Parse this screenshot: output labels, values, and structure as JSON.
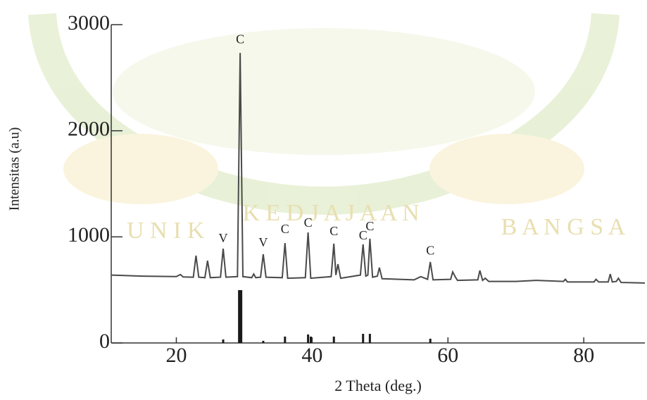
{
  "chart_data": {
    "type": "line",
    "xlabel": "2 Theta (deg.)",
    "ylabel": "Intensitas (a.u)",
    "xlim": [
      10,
      89
    ],
    "ylim": [
      0,
      3000
    ],
    "xticks": [
      20,
      40,
      60,
      80
    ],
    "yticks": [
      0,
      1000,
      2000,
      3000
    ],
    "color": "#4a4a4a",
    "x": [
      10.5,
      15,
      20,
      20.6,
      21,
      22.5,
      22.9,
      23.3,
      24.2,
      24.6,
      25,
      26.5,
      26.9,
      27.3,
      29.0,
      29.4,
      29.8,
      31.1,
      31.4,
      31.7,
      32.4,
      32.8,
      33.2,
      35.6,
      36,
      36.4,
      39.0,
      39.4,
      39.8,
      42.8,
      43.2,
      43.5,
      43.8,
      44.2,
      47.1,
      47.5,
      47.9,
      48.2,
      48.5,
      48.9,
      49.6,
      49.9,
      50.3,
      55,
      56,
      57,
      57.4,
      57.8,
      60.4,
      60.7,
      61.1,
      61.4,
      64.4,
      64.7,
      65.1,
      65.5,
      66,
      70,
      73,
      77,
      77.3,
      77.6,
      81.5,
      81.8,
      82.2,
      83.6,
      83.9,
      84.2,
      84.8,
      85.1,
      85.5,
      89
    ],
    "values": [
      640,
      630,
      625,
      645,
      622,
      620,
      823,
      620,
      615,
      776,
      615,
      620,
      889,
      620,
      625,
      2734,
      625,
      615,
      650,
      615,
      620,
      836,
      620,
      615,
      942,
      610,
      615,
      1042,
      610,
      625,
      936,
      640,
      743,
      610,
      640,
      929,
      630,
      640,
      982,
      620,
      630,
      710,
      605,
      595,
      625,
      600,
      763,
      595,
      600,
      670,
      620,
      590,
      595,
      683,
      590,
      610,
      580,
      580,
      590,
      580,
      600,
      575,
      575,
      600,
      575,
      575,
      650,
      575,
      580,
      610,
      570,
      565
    ],
    "reference": {
      "color": "#1a1a1a",
      "x": [
        26.9,
        29.4,
        32.8,
        36,
        39.4,
        39.8,
        43.2,
        47.5,
        48.5,
        57.4
      ],
      "values": [
        33,
        498,
        20,
        60,
        80,
        60,
        60,
        86,
        86,
        40
      ]
    },
    "annotations": [
      {
        "text": "V",
        "x": 26.9,
        "y": 975
      },
      {
        "text": "C",
        "x": 29.4,
        "y": 2850
      },
      {
        "text": "V",
        "x": 32.8,
        "y": 936
      },
      {
        "text": "C",
        "x": 36,
        "y": 1062
      },
      {
        "text": "C",
        "x": 39.4,
        "y": 1121
      },
      {
        "text": "C",
        "x": 43.2,
        "y": 1042
      },
      {
        "text": "C",
        "x": 47.5,
        "y": 1002
      },
      {
        "text": "C",
        "x": 48.5,
        "y": 1088
      },
      {
        "text": "C",
        "x": 57.4,
        "y": 862
      }
    ]
  },
  "watermark": [
    "U N I K",
    "K E D J A J A A N",
    "B A N G S A"
  ]
}
